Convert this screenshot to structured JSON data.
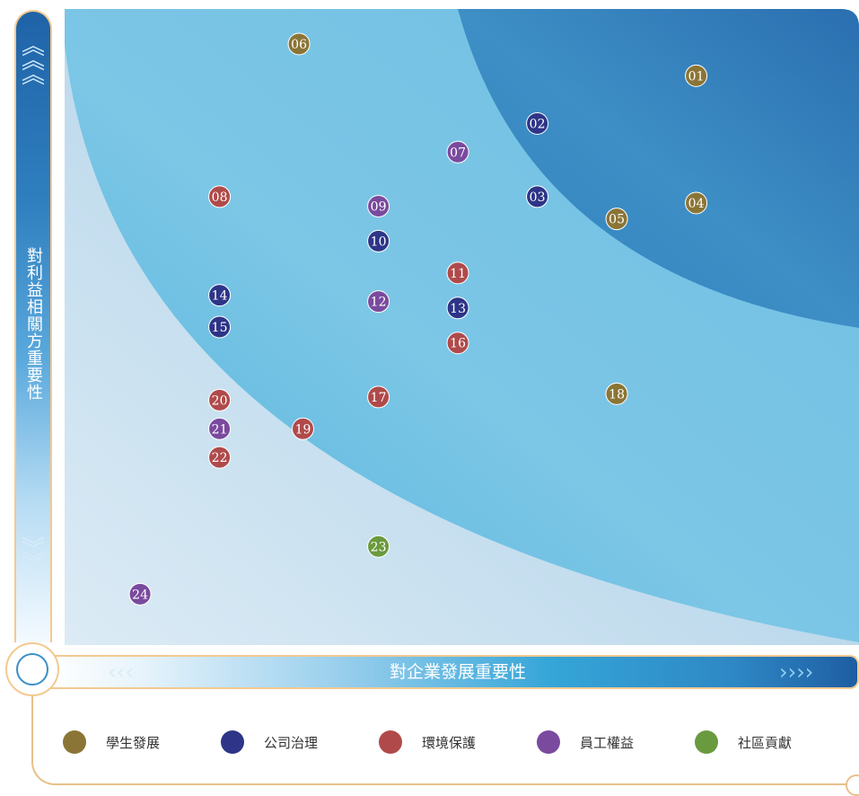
{
  "chart_data": {
    "type": "scatter",
    "xlabel": "對企業發展重要性",
    "ylabel": "對利益相關方重要性",
    "xlim": [
      0,
      10
    ],
    "ylim": [
      0,
      10
    ],
    "grid": false,
    "legend_position": "bottom",
    "series": [
      {
        "name": "學生發展",
        "color": "#8b7536",
        "points": [
          {
            "label": "01",
            "x": 7.95,
            "y": 8.95
          },
          {
            "label": "04",
            "x": 7.95,
            "y": 6.95
          },
          {
            "label": "05",
            "x": 6.95,
            "y": 6.7
          },
          {
            "label": "06",
            "x": 2.95,
            "y": 9.45
          },
          {
            "label": "18",
            "x": 6.95,
            "y": 3.95
          }
        ]
      },
      {
        "name": "公司治理",
        "color": "#2e3487",
        "points": [
          {
            "label": "02",
            "x": 5.95,
            "y": 8.2
          },
          {
            "label": "03",
            "x": 5.95,
            "y": 7.05
          },
          {
            "label": "10",
            "x": 3.95,
            "y": 6.35
          },
          {
            "label": "13",
            "x": 4.95,
            "y": 5.3
          },
          {
            "label": "14",
            "x": 1.95,
            "y": 5.5
          },
          {
            "label": "15",
            "x": 1.95,
            "y": 5.0
          }
        ]
      },
      {
        "name": "環境保護",
        "color": "#b04a4a",
        "points": [
          {
            "label": "08",
            "x": 1.95,
            "y": 7.05
          },
          {
            "label": "11",
            "x": 4.95,
            "y": 5.85
          },
          {
            "label": "16",
            "x": 4.95,
            "y": 4.75
          },
          {
            "label": "17",
            "x": 3.95,
            "y": 3.9
          },
          {
            "label": "19",
            "x": 3.0,
            "y": 3.4
          },
          {
            "label": "20",
            "x": 1.95,
            "y": 3.85
          },
          {
            "label": "22",
            "x": 1.95,
            "y": 2.95
          }
        ]
      },
      {
        "name": "員工權益",
        "color": "#7a4a9e",
        "points": [
          {
            "label": "07",
            "x": 4.95,
            "y": 7.75
          },
          {
            "label": "09",
            "x": 3.95,
            "y": 6.9
          },
          {
            "label": "12",
            "x": 3.95,
            "y": 5.4
          },
          {
            "label": "21",
            "x": 1.95,
            "y": 3.4
          },
          {
            "label": "24",
            "x": 0.95,
            "y": 0.8
          }
        ]
      },
      {
        "name": "社區貢獻",
        "color": "#6a9a3e",
        "points": [
          {
            "label": "23",
            "x": 3.95,
            "y": 1.55
          }
        ]
      }
    ]
  },
  "legend": [
    {
      "label": "學生發展",
      "color": "#8b7536"
    },
    {
      "label": "公司治理",
      "color": "#2e3487"
    },
    {
      "label": "環境保護",
      "color": "#b04a4a"
    },
    {
      "label": "員工權益",
      "color": "#7a4a9e"
    },
    {
      "label": "社區貢獻",
      "color": "#6a9a3e"
    }
  ],
  "icons": {
    "y_top": "chevron-up-icon",
    "y_bottom": "chevron-down-icon",
    "x_left": "chevron-left-icon",
    "x_right": "chevron-right-icon"
  }
}
